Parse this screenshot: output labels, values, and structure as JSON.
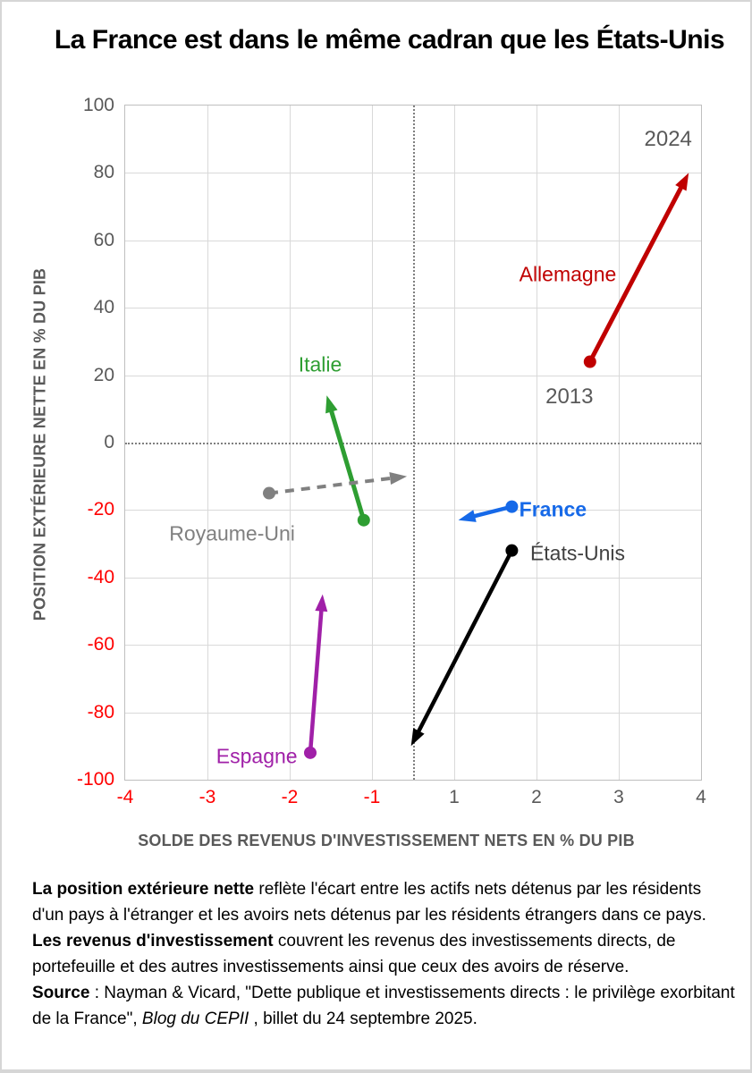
{
  "chart_data": {
    "type": "scatter",
    "subtype": "arrow-plot-2013-to-2024",
    "title": "La France est dans le même cadran que les États-Unis",
    "xlabel": "SOLDE DES REVENUS D'INVESTISSEMENT NETS EN % DU PIB",
    "ylabel": "POSITION EXTÉRIEURE NETTE EN % DU PIB",
    "xlim": [
      -4,
      4
    ],
    "ylim": [
      -100,
      100
    ],
    "x_ticks": [
      -4,
      -3,
      -2,
      -1,
      1,
      2,
      3,
      4
    ],
    "y_ticks": [
      100,
      80,
      60,
      40,
      20,
      0,
      -20,
      -40,
      -60,
      -80,
      -100
    ],
    "grid": true,
    "zero_reference_lines": "dotted horizontal at y=0 and dotted vertical at x=0 (x ticks equally spaced, 0 label omitted)",
    "negative_tick_color": "#ff0000",
    "positive_tick_color": "#595959",
    "grid_color": "#d9d9d9",
    "series": [
      {
        "name": "Allemagne",
        "color": "#c00000",
        "label_color": "#c00000",
        "style": "solid",
        "from_year": 2013,
        "to_year": 2024,
        "from": [
          2.65,
          24
        ],
        "to": [
          3.85,
          80
        ],
        "label_pos": [
          2.38,
          50
        ],
        "stroke": 5,
        "bold_label": false
      },
      {
        "name": "Italie",
        "color": "#2e9e32",
        "label_color": "#2e9e32",
        "style": "solid",
        "from_year": 2013,
        "to_year": 2024,
        "from": [
          -1.1,
          -23
        ],
        "to": [
          -1.55,
          14
        ],
        "label_pos": [
          -1.63,
          23
        ],
        "stroke": 5,
        "bold_label": false
      },
      {
        "name": "Royaume-Uni",
        "color": "#808080",
        "label_color": "#808080",
        "style": "dashed",
        "from_year": 2013,
        "to_year": 2024,
        "from": [
          -2.25,
          -15
        ],
        "to": [
          -0.15,
          -10
        ],
        "label_pos": [
          -2.7,
          -27
        ],
        "stroke": 4,
        "bold_label": false
      },
      {
        "name": "France",
        "color": "#1669e8",
        "label_color": "#1669e8",
        "style": "solid",
        "from_year": 2013,
        "to_year": 2024,
        "from": [
          1.7,
          -19
        ],
        "to": [
          1.05,
          -23
        ],
        "label_pos": [
          2.2,
          -20
        ],
        "stroke": 4.5,
        "bold_label": true
      },
      {
        "name": "États-Unis",
        "color": "#000000",
        "label_color": "#404040",
        "style": "solid",
        "from_year": 2013,
        "to_year": 2024,
        "from": [
          1.7,
          -32
        ],
        "to": [
          -0.05,
          -90
        ],
        "label_pos": [
          2.5,
          -33
        ],
        "stroke": 4.5,
        "bold_label": false
      },
      {
        "name": "Espagne",
        "color": "#a020a8",
        "label_color": "#a020a8",
        "style": "solid",
        "from_year": 2013,
        "to_year": 2024,
        "from": [
          -1.75,
          -92
        ],
        "to": [
          -1.6,
          -45
        ],
        "label_pos": [
          -2.4,
          -93
        ],
        "stroke": 4.5,
        "bold_label": false
      }
    ],
    "annotations": [
      {
        "text": "2024",
        "pos": [
          3.6,
          90
        ],
        "color": "#595959"
      },
      {
        "text": "2013",
        "pos": [
          2.4,
          13.5
        ],
        "color": "#595959"
      }
    ]
  },
  "notes": [
    {
      "segments": [
        {
          "text": "La position extérieure nette",
          "bold": true
        },
        {
          "text": " reflète l'écart entre les actifs nets détenus par les résidents d'un pays à l'étranger et les avoirs nets détenus par les résidents étrangers dans ce pays."
        }
      ]
    },
    {
      "segments": [
        {
          "text": "Les revenus d'investissement",
          "bold": true
        },
        {
          "text": " couvrent les revenus des investissements directs, de portefeuille et  des autres investissements ainsi que ceux des avoirs de réserve."
        }
      ]
    },
    {
      "segments": [
        {
          "text": "Source",
          "bold": true
        },
        {
          "text": " : Nayman & Vicard, \"Dette publique et investissements directs : le privilège exorbitant de la France\", "
        },
        {
          "text": "Blog du CEPII",
          "italic": true
        },
        {
          "text": " , billet du 24 septembre 2025."
        }
      ]
    }
  ]
}
